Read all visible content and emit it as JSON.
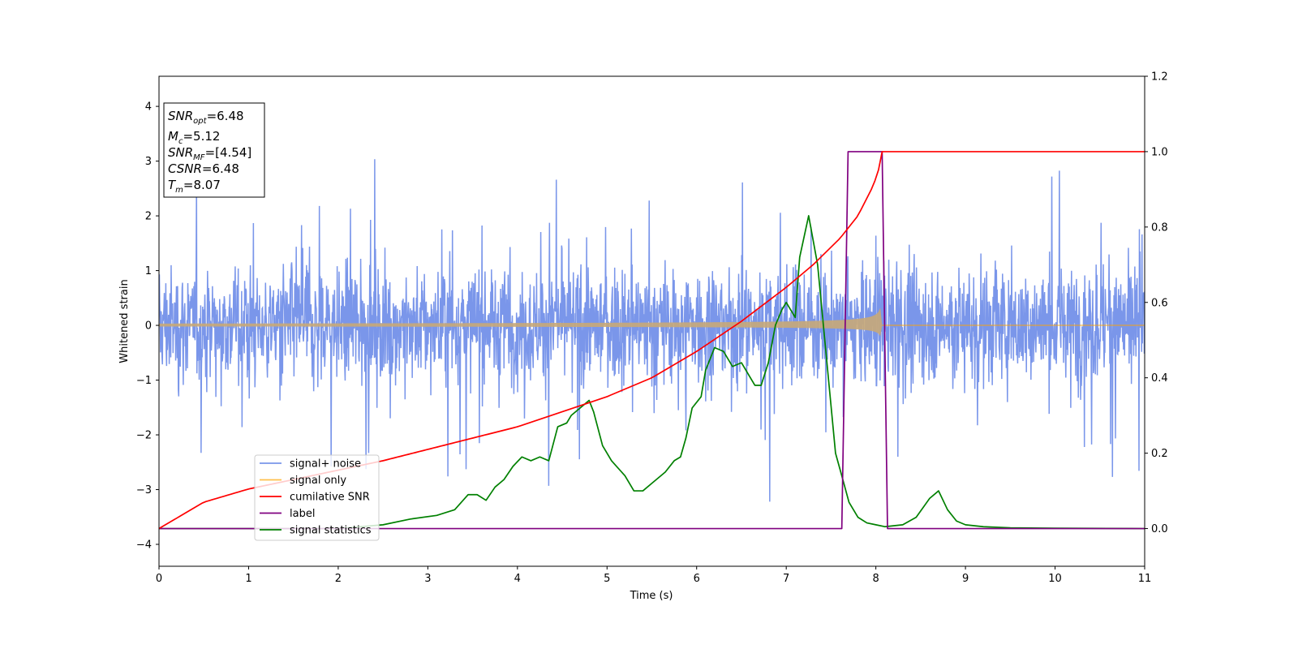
{
  "chart_data": {
    "type": "line",
    "xlabel": "Time (s)",
    "ylabel": "Whitened strain",
    "xlim": [
      0,
      11
    ],
    "ylim": [
      -4.4,
      4.55
    ],
    "y2lim": [
      -0.1,
      1.2
    ],
    "xticks": [
      "0",
      "1",
      "2",
      "3",
      "4",
      "5",
      "6",
      "7",
      "8",
      "9",
      "10",
      "11"
    ],
    "yticks": [
      "−4",
      "−3",
      "−2",
      "−1",
      "0",
      "1",
      "2",
      "3",
      "4"
    ],
    "y2ticks": [
      "0.0",
      "0.2",
      "0.4",
      "0.6",
      "0.8",
      "1.0",
      "1.2"
    ],
    "grid": false,
    "legend_position": "lower-left",
    "stats_box": [
      {
        "label": "SNR",
        "sub": "opt",
        "value": "=6.48"
      },
      {
        "label": "M",
        "sub": "c",
        "value": "=5.12"
      },
      {
        "label": "SNR",
        "sub": "MF",
        "value": "=[4.54]"
      },
      {
        "label": "CSNR",
        "sub": "",
        "value": "=6.48"
      },
      {
        "label": "T",
        "sub": "m",
        "value": "=8.07"
      }
    ],
    "series": [
      {
        "name": "signal+ noise",
        "color": "#4169e1",
        "axis": "left",
        "kind": "noise",
        "std": 0.85
      },
      {
        "name": "signal only",
        "color": "#ffa500",
        "axis": "left",
        "kind": "chirp",
        "merger_time": 8.07,
        "peak_amplitude": 0.6
      },
      {
        "name": "cumilative SNR",
        "color": "#ff0000",
        "axis": "right",
        "x": [
          0,
          0.5,
          1,
          1.5,
          2,
          2.5,
          3,
          3.5,
          4,
          4.5,
          5,
          5.5,
          6,
          6.5,
          7,
          7.3,
          7.6,
          7.8,
          7.95,
          8.02,
          8.07,
          11
        ],
        "y": [
          0.0,
          0.07,
          0.105,
          0.13,
          0.155,
          0.18,
          0.21,
          0.24,
          0.27,
          0.31,
          0.35,
          0.4,
          0.47,
          0.55,
          0.64,
          0.7,
          0.77,
          0.83,
          0.9,
          0.94,
          1.0,
          1.0
        ]
      },
      {
        "name": "label",
        "color": "#800080",
        "axis": "right",
        "x": [
          0,
          7.62,
          7.69,
          8.07,
          8.13,
          11
        ],
        "y": [
          0,
          0,
          1,
          1,
          0,
          0
        ]
      },
      {
        "name": "signal statistics",
        "color": "#008000",
        "axis": "right",
        "x": [
          0,
          1,
          2,
          2.5,
          2.8,
          3.1,
          3.3,
          3.45,
          3.55,
          3.65,
          3.75,
          3.85,
          3.95,
          4.05,
          4.15,
          4.25,
          4.35,
          4.45,
          4.55,
          4.6,
          4.7,
          4.8,
          4.85,
          4.95,
          5.05,
          5.2,
          5.3,
          5.4,
          5.5,
          5.65,
          5.75,
          5.82,
          5.88,
          5.95,
          6.05,
          6.1,
          6.2,
          6.3,
          6.4,
          6.5,
          6.6,
          6.65,
          6.72,
          6.8,
          6.88,
          6.95,
          7.0,
          7.1,
          7.15,
          7.25,
          7.35,
          7.45,
          7.55,
          7.62,
          7.7,
          7.8,
          7.9,
          8.0,
          8.1,
          8.3,
          8.45,
          8.6,
          8.7,
          8.8,
          8.9,
          9.0,
          9.2,
          9.5,
          10,
          11
        ],
        "y": [
          0,
          0,
          0,
          0.01,
          0.025,
          0.035,
          0.05,
          0.09,
          0.09,
          0.075,
          0.11,
          0.13,
          0.165,
          0.19,
          0.18,
          0.19,
          0.18,
          0.27,
          0.28,
          0.3,
          0.32,
          0.34,
          0.31,
          0.22,
          0.18,
          0.14,
          0.1,
          0.1,
          0.12,
          0.15,
          0.18,
          0.19,
          0.24,
          0.32,
          0.35,
          0.42,
          0.48,
          0.47,
          0.43,
          0.44,
          0.4,
          0.38,
          0.38,
          0.44,
          0.54,
          0.58,
          0.6,
          0.56,
          0.72,
          0.83,
          0.7,
          0.45,
          0.2,
          0.14,
          0.07,
          0.03,
          0.015,
          0.01,
          0.005,
          0.01,
          0.03,
          0.08,
          0.1,
          0.05,
          0.02,
          0.01,
          0.005,
          0.002,
          0.001,
          0
        ]
      }
    ]
  }
}
